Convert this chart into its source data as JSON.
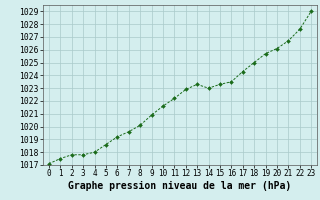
{
  "x": [
    0,
    1,
    2,
    3,
    4,
    5,
    6,
    7,
    8,
    9,
    10,
    11,
    12,
    13,
    14,
    15,
    16,
    17,
    18,
    19,
    20,
    21,
    22,
    23
  ],
  "y": [
    1017.1,
    1017.5,
    1017.8,
    1017.8,
    1018.0,
    1018.6,
    1019.2,
    1019.6,
    1020.1,
    1020.9,
    1021.6,
    1022.2,
    1022.9,
    1023.3,
    1023.0,
    1023.3,
    1023.5,
    1024.3,
    1025.0,
    1025.7,
    1026.1,
    1026.7,
    1027.6,
    1029.0
  ],
  "line_color": "#1a6b1a",
  "marker_size": 2.0,
  "bg_color": "#d4eeee",
  "grid_color": "#aacaca",
  "xlabel": "Graphe pression niveau de la mer (hPa)",
  "ylim": [
    1017,
    1029.5
  ],
  "xlim": [
    -0.5,
    23.5
  ],
  "yticks": [
    1017,
    1018,
    1019,
    1020,
    1021,
    1022,
    1023,
    1024,
    1025,
    1026,
    1027,
    1028,
    1029
  ],
  "xticks": [
    0,
    1,
    2,
    3,
    4,
    5,
    6,
    7,
    8,
    9,
    10,
    11,
    12,
    13,
    14,
    15,
    16,
    17,
    18,
    19,
    20,
    21,
    22,
    23
  ],
  "xlabel_fontsize": 7,
  "ytick_fontsize": 5.8,
  "xtick_fontsize": 5.5
}
